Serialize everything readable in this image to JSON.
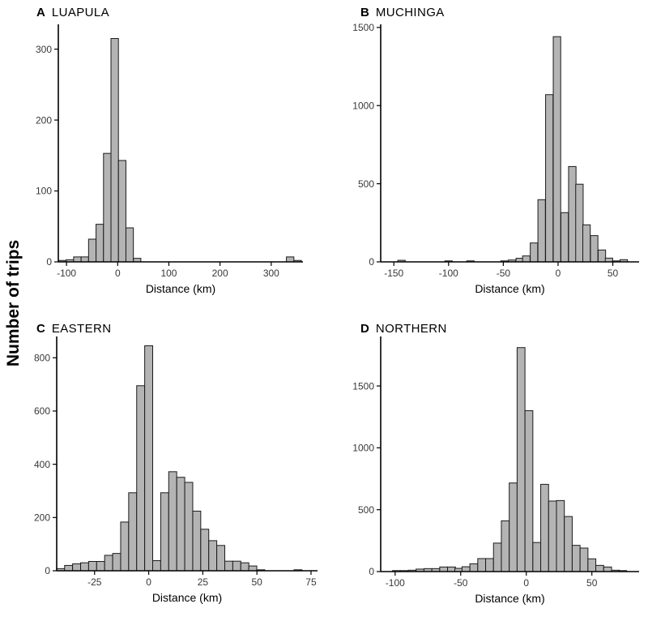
{
  "figure": {
    "ylabel": "Number of trips",
    "background": "#ffffff",
    "bar_fill": "#b4b4b4",
    "bar_stroke": "#1b1b1b",
    "axis_color": "#000000",
    "tick_label_color": "#383838"
  },
  "chart_data": [
    {
      "type": "bar",
      "subtype": "histogram",
      "panel": "A",
      "title": "LUAPULA",
      "xlabel": "Distance (km)",
      "ylabel": "Number of trips",
      "xlim": [
        -116,
        362
      ],
      "ylim": [
        0,
        335
      ],
      "xticks": [
        -100,
        0,
        100,
        200,
        300
      ],
      "yticks": [
        0,
        100,
        200,
        300
      ],
      "binwidth": 14.6,
      "grid": false,
      "legend": "none",
      "bars": [
        [
          -108,
          2
        ],
        [
          -93.4,
          3
        ],
        [
          -78.8,
          7
        ],
        [
          -64.2,
          7
        ],
        [
          -49.6,
          32
        ],
        [
          -35,
          53
        ],
        [
          -20.4,
          153
        ],
        [
          -5.8,
          315
        ],
        [
          8.8,
          143
        ],
        [
          23.4,
          48
        ],
        [
          38,
          5
        ],
        [
          337,
          7
        ],
        [
          351.6,
          2
        ]
      ]
    },
    {
      "type": "bar",
      "subtype": "histogram",
      "panel": "B",
      "title": "MUCHINGA",
      "xlabel": "Distance (km)",
      "ylabel": "Number of trips",
      "xlim": [
        -162,
        74
      ],
      "ylim": [
        0,
        1520
      ],
      "xticks": [
        -150,
        -100,
        -50,
        0,
        50
      ],
      "yticks": [
        0,
        500,
        1000,
        1500
      ],
      "binwidth": 6.8,
      "grid": false,
      "legend": "none",
      "bars": [
        [
          -143,
          10
        ],
        [
          -100,
          2
        ],
        [
          -80,
          2
        ],
        [
          -49,
          5
        ],
        [
          -42,
          12
        ],
        [
          -35,
          23
        ],
        [
          -29,
          38
        ],
        [
          -22,
          121
        ],
        [
          -15,
          398
        ],
        [
          -8,
          1070
        ],
        [
          -1,
          1441
        ],
        [
          6,
          315
        ],
        [
          13,
          610
        ],
        [
          19.5,
          497
        ],
        [
          26,
          237
        ],
        [
          33,
          168
        ],
        [
          40,
          76
        ],
        [
          46.5,
          24
        ],
        [
          53,
          5
        ],
        [
          60,
          14
        ]
      ]
    },
    {
      "type": "bar",
      "subtype": "histogram",
      "panel": "C",
      "title": "EASTERN",
      "xlabel": "Distance (km)",
      "ylabel": "Number of trips",
      "xlim": [
        -42.5,
        78
      ],
      "ylim": [
        0,
        880
      ],
      "xticks": [
        -25,
        0,
        25,
        50,
        75
      ],
      "yticks": [
        0,
        200,
        400,
        600,
        800
      ],
      "binwidth": 3.7,
      "grid": false,
      "legend": "none",
      "bars": [
        [
          -40.7,
          8
        ],
        [
          -37,
          20
        ],
        [
          -33.3,
          26
        ],
        [
          -29.6,
          30
        ],
        [
          -25.9,
          35
        ],
        [
          -22.2,
          35
        ],
        [
          -18.5,
          58
        ],
        [
          -14.8,
          65
        ],
        [
          -11.1,
          183
        ],
        [
          -7.4,
          293
        ],
        [
          -3.7,
          695
        ],
        [
          0,
          845
        ],
        [
          3.7,
          38
        ],
        [
          7.4,
          293
        ],
        [
          11.1,
          372
        ],
        [
          14.8,
          351
        ],
        [
          18.5,
          332
        ],
        [
          22.2,
          224
        ],
        [
          25.9,
          156
        ],
        [
          29.6,
          113
        ],
        [
          33.3,
          95
        ],
        [
          37,
          36
        ],
        [
          40.7,
          36
        ],
        [
          44.4,
          30
        ],
        [
          48.1,
          18
        ],
        [
          51.8,
          3
        ],
        [
          69,
          2
        ]
      ]
    },
    {
      "type": "bar",
      "subtype": "histogram",
      "panel": "D",
      "title": "NORTHERN",
      "xlabel": "Distance (km)",
      "ylabel": "Number of trips",
      "xlim": [
        -111,
        86
      ],
      "ylim": [
        0,
        1900
      ],
      "xticks": [
        -100,
        -50,
        0,
        50
      ],
      "yticks": [
        0,
        500,
        1000,
        1500
      ],
      "binwidth": 6,
      "grid": false,
      "legend": "none",
      "bars": [
        [
          -99,
          3
        ],
        [
          -93,
          6
        ],
        [
          -87,
          11
        ],
        [
          -81,
          20
        ],
        [
          -75,
          24
        ],
        [
          -69,
          24
        ],
        [
          -63,
          37
        ],
        [
          -57,
          37
        ],
        [
          -51.5,
          26
        ],
        [
          -46,
          39
        ],
        [
          -40,
          63
        ],
        [
          -34,
          105
        ],
        [
          -28,
          105
        ],
        [
          -22,
          230
        ],
        [
          -16,
          410
        ],
        [
          -10,
          716
        ],
        [
          -4,
          1810
        ],
        [
          2,
          1300
        ],
        [
          8,
          235
        ],
        [
          14,
          705
        ],
        [
          20,
          570
        ],
        [
          26,
          574
        ],
        [
          32,
          445
        ],
        [
          38,
          212
        ],
        [
          44,
          190
        ],
        [
          50,
          103
        ],
        [
          56,
          50
        ],
        [
          62,
          37
        ],
        [
          68,
          11
        ],
        [
          73.5,
          4
        ]
      ]
    }
  ]
}
